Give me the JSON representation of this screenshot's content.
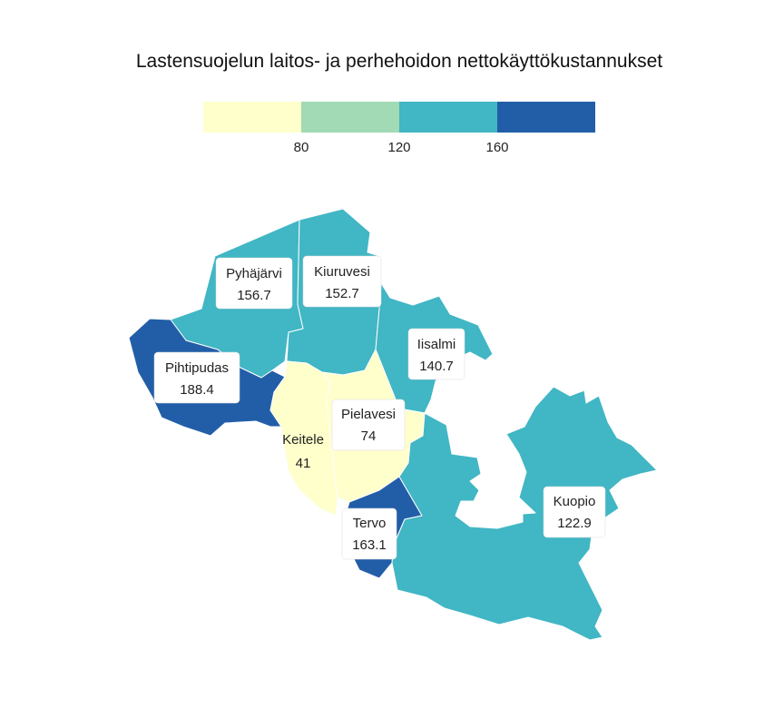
{
  "title": "Lastensuojelun laitos- ja perhehoidon nettokäyttökustannukset",
  "legend": {
    "colors": [
      "#ffffcc",
      "#a1dab4",
      "#41b6c4",
      "#225ea8"
    ],
    "thresholds": [
      "80",
      "120",
      "160"
    ]
  },
  "regions": [
    {
      "name": "Pyhäjärvi",
      "value": "156.7",
      "color": "#41b6c4"
    },
    {
      "name": "Kiuruvesi",
      "value": "152.7",
      "color": "#41b6c4"
    },
    {
      "name": "Iisalmi",
      "value": "140.7",
      "color": "#41b6c4"
    },
    {
      "name": "Pihtipudas",
      "value": "188.4",
      "color": "#225ea8"
    },
    {
      "name": "Pielavesi",
      "value": "74",
      "color": "#ffffcc"
    },
    {
      "name": "Keitele",
      "value": "41",
      "color": "#ffffcc"
    },
    {
      "name": "Tervo",
      "value": "163.1",
      "color": "#225ea8"
    },
    {
      "name": "Kuopio",
      "value": "122.9",
      "color": "#41b6c4"
    }
  ]
}
